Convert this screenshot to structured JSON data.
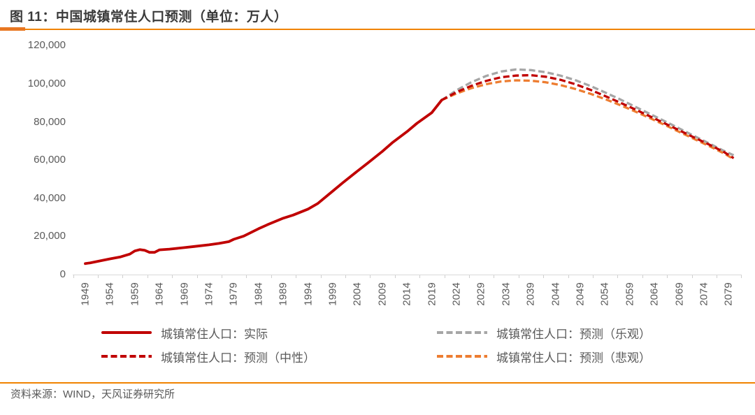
{
  "figure": {
    "title": "图 11：中国城镇常住人口预测（单位：万人）",
    "source": "资料来源：WIND，天风证券研究所"
  },
  "colors": {
    "accent_rule": "#f08300",
    "accent_rule_dark": "#e87722",
    "axis_text": "#595959",
    "axis_line": "#d9d9d9",
    "actual_red": "#c00000",
    "optimistic_gray": "#a6a6a6",
    "pessimistic_orange": "#ed7d31"
  },
  "legend": {
    "items": [
      {
        "label": "城镇常住人口：实际",
        "style": "solid",
        "color": "#c00000"
      },
      {
        "label": "城镇常住人口：预测（乐观）",
        "style": "dashed",
        "color": "#a6a6a6"
      },
      {
        "label": "城镇常住人口：预测（中性）",
        "style": "dashed",
        "color": "#c00000"
      },
      {
        "label": "城镇常住人口：预测（悲观）",
        "style": "dashed",
        "color": "#ed7d31"
      }
    ]
  },
  "chart_data": {
    "type": "line",
    "title": "中国城镇常住人口预测",
    "unit": "万人",
    "xlabel": "",
    "ylabel": "",
    "grid": false,
    "legend_position": "bottom",
    "x_range": [
      1949,
      2080
    ],
    "ylim": [
      0,
      120000
    ],
    "y_ticks": [
      0,
      20000,
      40000,
      60000,
      80000,
      100000,
      120000
    ],
    "y_tick_labels": [
      "0",
      "20,000",
      "40,000",
      "60,000",
      "80,000",
      "100,000",
      "120,000"
    ],
    "x_ticks": [
      1949,
      1954,
      1959,
      1964,
      1969,
      1974,
      1979,
      1984,
      1989,
      1994,
      1999,
      2004,
      2009,
      2014,
      2019,
      2024,
      2029,
      2034,
      2039,
      2044,
      2049,
      2054,
      2059,
      2064,
      2069,
      2074,
      2079
    ],
    "series": [
      {
        "name": "城镇常住人口：实际",
        "style": "solid",
        "color": "#c00000",
        "points": [
          [
            1949,
            5765
          ],
          [
            1950,
            6169
          ],
          [
            1952,
            7163
          ],
          [
            1954,
            8249
          ],
          [
            1956,
            9185
          ],
          [
            1957,
            9949
          ],
          [
            1958,
            10721
          ],
          [
            1959,
            12371
          ],
          [
            1960,
            13073
          ],
          [
            1961,
            12707
          ],
          [
            1962,
            11659
          ],
          [
            1963,
            11646
          ],
          [
            1964,
            12950
          ],
          [
            1966,
            13313
          ],
          [
            1969,
            14117
          ],
          [
            1971,
            14711
          ],
          [
            1974,
            15595
          ],
          [
            1976,
            16341
          ],
          [
            1978,
            17245
          ],
          [
            1979,
            18495
          ],
          [
            1981,
            20171
          ],
          [
            1984,
            24017
          ],
          [
            1986,
            26366
          ],
          [
            1989,
            29540
          ],
          [
            1991,
            31203
          ],
          [
            1994,
            34301
          ],
          [
            1996,
            37304
          ],
          [
            1999,
            43748
          ],
          [
            2001,
            48064
          ],
          [
            2004,
            54283
          ],
          [
            2006,
            58288
          ],
          [
            2009,
            64512
          ],
          [
            2011,
            69079
          ],
          [
            2014,
            74916
          ],
          [
            2016,
            79298
          ],
          [
            2019,
            84843
          ],
          [
            2021,
            91425
          ]
        ]
      },
      {
        "name": "城镇常住人口：预测（乐观）",
        "style": "dashed",
        "color": "#a6a6a6",
        "points": [
          [
            2021,
            91425
          ],
          [
            2024,
            96600
          ],
          [
            2027,
            100800
          ],
          [
            2030,
            104100
          ],
          [
            2033,
            106400
          ],
          [
            2036,
            107500
          ],
          [
            2039,
            107200
          ],
          [
            2042,
            106100
          ],
          [
            2045,
            104300
          ],
          [
            2048,
            101900
          ],
          [
            2051,
            98900
          ],
          [
            2054,
            95500
          ],
          [
            2057,
            91900
          ],
          [
            2060,
            88100
          ],
          [
            2063,
            84300
          ],
          [
            2066,
            80500
          ],
          [
            2069,
            76600
          ],
          [
            2072,
            72700
          ],
          [
            2075,
            68800
          ],
          [
            2078,
            64900
          ],
          [
            2080,
            62500
          ]
        ]
      },
      {
        "name": "城镇常住人口：预测（中性）",
        "style": "dashed",
        "color": "#c00000",
        "points": [
          [
            2021,
            91425
          ],
          [
            2024,
            95600
          ],
          [
            2027,
            98900
          ],
          [
            2030,
            101500
          ],
          [
            2033,
            103400
          ],
          [
            2036,
            104300
          ],
          [
            2039,
            104500
          ],
          [
            2042,
            103700
          ],
          [
            2045,
            102100
          ],
          [
            2048,
            99800
          ],
          [
            2051,
            96900
          ],
          [
            2054,
            93600
          ],
          [
            2057,
            90200
          ],
          [
            2060,
            86700
          ],
          [
            2063,
            83000
          ],
          [
            2066,
            79300
          ],
          [
            2069,
            75600
          ],
          [
            2072,
            71900
          ],
          [
            2075,
            68200
          ],
          [
            2078,
            64300
          ],
          [
            2080,
            61000
          ]
        ]
      },
      {
        "name": "城镇常住人口：预测（悲观）",
        "style": "dashed",
        "color": "#ed7d31",
        "points": [
          [
            2021,
            91425
          ],
          [
            2024,
            94900
          ],
          [
            2027,
            97700
          ],
          [
            2030,
            99800
          ],
          [
            2033,
            101200
          ],
          [
            2036,
            101800
          ],
          [
            2039,
            101600
          ],
          [
            2042,
            100800
          ],
          [
            2045,
            99300
          ],
          [
            2048,
            97300
          ],
          [
            2051,
            94800
          ],
          [
            2054,
            92000
          ],
          [
            2057,
            88900
          ],
          [
            2060,
            85600
          ],
          [
            2063,
            82100
          ],
          [
            2066,
            78500
          ],
          [
            2069,
            74800
          ],
          [
            2072,
            71100
          ],
          [
            2075,
            67400
          ],
          [
            2078,
            63600
          ],
          [
            2080,
            60500
          ]
        ]
      }
    ]
  }
}
